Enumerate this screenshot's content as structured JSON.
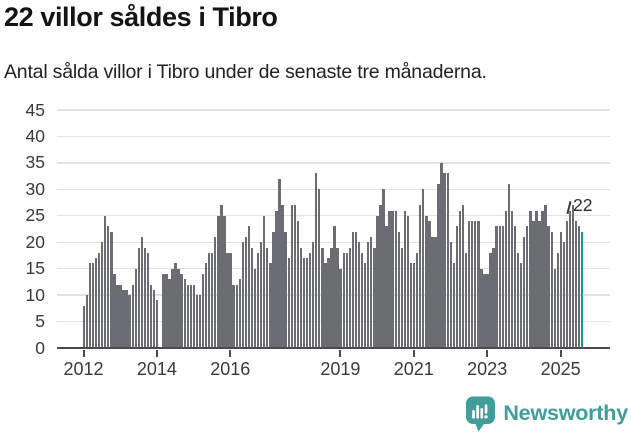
{
  "header": {
    "title": "22 villor såldes i Tibro",
    "subtitle": "Antal sålda villor i Tibro under de senaste tre månaderna."
  },
  "chart": {
    "y_ticks": [
      0,
      5,
      10,
      15,
      20,
      25,
      30,
      35,
      40,
      45
    ],
    "x_ticks": [
      2012,
      2014,
      2016,
      2019,
      2021,
      2023,
      2025
    ],
    "annotation_label": "22",
    "colors": {
      "bar": "#6c6c74",
      "highlight_bar": "#12999c",
      "gridline": "#e2e2e4",
      "axis": "#4a4a52",
      "tick_text": "#3a3a3a",
      "brand_teal": "#3f9e9b"
    }
  },
  "chart_data": {
    "type": "bar",
    "title": "22 villor såldes i Tibro",
    "subtitle": "Antal sålda villor i Tibro under de senaste tre månaderna.",
    "xlabel": "",
    "ylabel": "",
    "ylim": [
      0,
      45
    ],
    "grid": "horizontal",
    "frequency": "monthly",
    "x_start": "2012-01",
    "x_end": "2025-08",
    "x_tick_years": [
      2012,
      2014,
      2016,
      2019,
      2021,
      2023,
      2025
    ],
    "highlight_last": {
      "value": 22,
      "label": "22"
    },
    "values": [
      8,
      10,
      16,
      16,
      17,
      18,
      20,
      25,
      23,
      22,
      14,
      12,
      12,
      11,
      11,
      10,
      12,
      15,
      19,
      21,
      19,
      18,
      12,
      11,
      9,
      0,
      14,
      14,
      13,
      15,
      16,
      15,
      14,
      13,
      12,
      12,
      12,
      10,
      10,
      14,
      16,
      18,
      18,
      21,
      25,
      27,
      25,
      18,
      18,
      12,
      12,
      13,
      20,
      21,
      23,
      19,
      15,
      18,
      20,
      25,
      19,
      16,
      22,
      26,
      32,
      27,
      22,
      17,
      27,
      27,
      24,
      19,
      17,
      17,
      18,
      20,
      33,
      30,
      19,
      16,
      17,
      19,
      23,
      19,
      15,
      18,
      18,
      19,
      22,
      22,
      20,
      18,
      16,
      20,
      21,
      19,
      25,
      27,
      30,
      23,
      26,
      26,
      26,
      22,
      19,
      26,
      25,
      16,
      16,
      18,
      27,
      30,
      25,
      24,
      21,
      21,
      31,
      35,
      33,
      33,
      20,
      16,
      23,
      26,
      27,
      18,
      24,
      24,
      24,
      24,
      15,
      14,
      14,
      18,
      19,
      23,
      23,
      23,
      26,
      31,
      26,
      23,
      18,
      16,
      21,
      23,
      26,
      24,
      26,
      24,
      26,
      27,
      23,
      22,
      15,
      18,
      22,
      20,
      24,
      26,
      27,
      24,
      23,
      22
    ]
  },
  "footer": {
    "brand": "Newsworthy"
  }
}
